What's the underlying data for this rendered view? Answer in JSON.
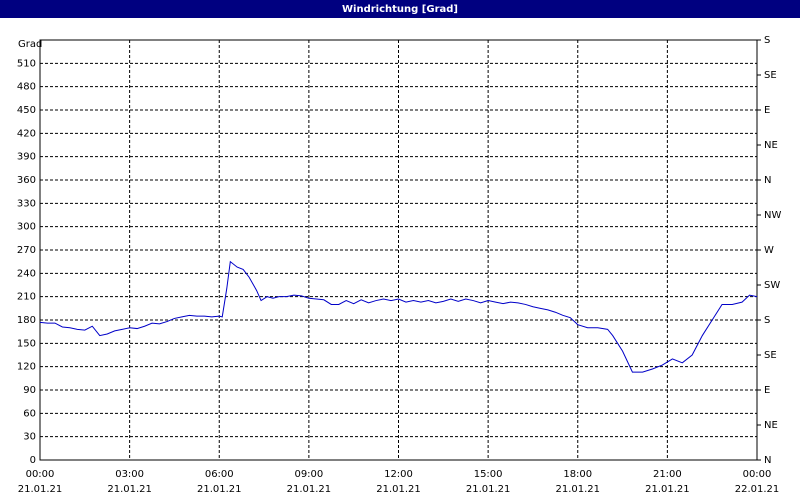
{
  "window_title": "Windrichtung [Grad]",
  "chart_data": {
    "type": "line",
    "ylabel": "Grad",
    "x": [
      0,
      0.25,
      0.5,
      0.75,
      1,
      1.25,
      1.5,
      1.75,
      2,
      2.25,
      2.5,
      2.75,
      3,
      3.25,
      3.5,
      3.75,
      4,
      4.25,
      4.5,
      4.75,
      5,
      5.25,
      5.5,
      5.75,
      6,
      6.1,
      6.25,
      6.37,
      6.6,
      6.8,
      7,
      7.25,
      7.4,
      7.6,
      7.8,
      8,
      8.25,
      8.5,
      8.75,
      9,
      9.25,
      9.5,
      9.75,
      10,
      10.25,
      10.5,
      10.75,
      11,
      11.25,
      11.5,
      11.75,
      12,
      12.25,
      12.5,
      12.75,
      13,
      13.25,
      13.5,
      13.75,
      14,
      14.25,
      14.5,
      14.75,
      15,
      15.25,
      15.5,
      15.75,
      16,
      16.25,
      16.5,
      16.75,
      17,
      17.25,
      17.5,
      17.75,
      18,
      18.33,
      18.67,
      19,
      19.17,
      19.5,
      19.83,
      20.17,
      20.5,
      20.83,
      21.17,
      21.5,
      21.83,
      22.17,
      22.5,
      22.83,
      23.17,
      23.5,
      23.75,
      24
    ],
    "series": [
      {
        "name": "Windrichtung",
        "color": "#0000c8",
        "values": [
          177,
          176,
          176,
          171,
          170,
          168,
          167,
          172,
          160,
          162,
          166,
          168,
          170,
          169,
          172,
          176,
          175,
          178,
          182,
          184,
          186,
          185,
          185,
          184,
          185,
          184,
          220,
          255,
          248,
          245,
          235,
          218,
          205,
          210,
          208,
          210,
          210,
          212,
          211,
          208,
          207,
          206,
          200,
          200,
          205,
          201,
          206,
          202,
          205,
          207,
          205,
          207,
          203,
          205,
          203,
          205,
          202,
          204,
          207,
          204,
          207,
          205,
          202,
          205,
          203,
          201,
          203,
          202,
          200,
          197,
          195,
          193,
          190,
          186,
          183,
          174,
          170,
          170,
          168,
          160,
          140,
          113,
          113,
          117,
          122,
          130,
          125,
          135,
          160,
          180,
          200,
          200,
          203,
          212,
          210
        ]
      }
    ],
    "xlim": [
      0,
      24
    ],
    "xticks": [
      {
        "value": 0,
        "label": "00:00",
        "date": "21.01.21"
      },
      {
        "value": 3,
        "label": "03:00",
        "date": "21.01.21"
      },
      {
        "value": 6,
        "label": "06:00",
        "date": "21.01.21"
      },
      {
        "value": 9,
        "label": "09:00",
        "date": "21.01.21"
      },
      {
        "value": 12,
        "label": "12:00",
        "date": "21.01.21"
      },
      {
        "value": 15,
        "label": "15:00",
        "date": "21.01.21"
      },
      {
        "value": 18,
        "label": "18:00",
        "date": "21.01.21"
      },
      {
        "value": 21,
        "label": "21:00",
        "date": "21.01.21"
      },
      {
        "value": 24,
        "label": "00:00",
        "date": "22.01.21"
      }
    ],
    "ylim": [
      0,
      540
    ],
    "yticks": [
      0,
      30,
      60,
      90,
      120,
      150,
      180,
      210,
      240,
      270,
      300,
      330,
      360,
      390,
      420,
      450,
      480,
      510
    ],
    "y2lim": [
      0,
      540
    ],
    "y2ticks": [
      {
        "value": 0,
        "label": "N"
      },
      {
        "value": 45,
        "label": "NE"
      },
      {
        "value": 90,
        "label": "E"
      },
      {
        "value": 135,
        "label": "SE"
      },
      {
        "value": 180,
        "label": "S"
      },
      {
        "value": 225,
        "label": "SW"
      },
      {
        "value": 270,
        "label": "W"
      },
      {
        "value": 315,
        "label": "NW"
      },
      {
        "value": 360,
        "label": "N"
      },
      {
        "value": 405,
        "label": "NE"
      },
      {
        "value": 450,
        "label": "E"
      },
      {
        "value": 495,
        "label": "SE"
      },
      {
        "value": 540,
        "label": "S"
      }
    ],
    "grid": true
  }
}
